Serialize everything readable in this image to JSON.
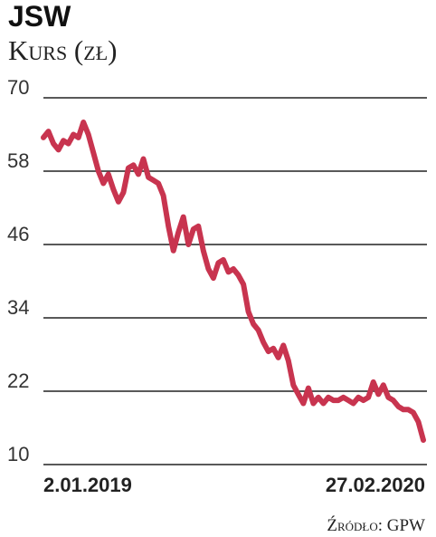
{
  "chart_data": {
    "type": "line",
    "title": "JSW",
    "subtitle": "Kurs (zł)",
    "ylim": [
      10,
      70
    ],
    "yticks": [
      10,
      22,
      34,
      46,
      58,
      70
    ],
    "ytick_labels": [
      "10",
      "22",
      "34",
      "46",
      "58",
      "70"
    ],
    "x_labels": [
      "2.01.2019",
      "27.02.2020"
    ],
    "grid": true,
    "line_color": "#c8344f",
    "grid_color": "#222222",
    "source": "Źródło: GPW",
    "series": [
      {
        "values": [
          63.5,
          64.5,
          62.5,
          61.5,
          63,
          62.5,
          64,
          63.5,
          66,
          64,
          61,
          58,
          56,
          57.5,
          55,
          53,
          54.5,
          58.5,
          59,
          57.5,
          60,
          57,
          56.5,
          56,
          54,
          49,
          45,
          48,
          50.5,
          46,
          48.5,
          49,
          45,
          42,
          40.5,
          43,
          43.5,
          41.5,
          42,
          41,
          39.5,
          35,
          33,
          32,
          30,
          28.5,
          29,
          27.5,
          29.5,
          27,
          23,
          21.5,
          20,
          22.5,
          20,
          21,
          20,
          21,
          20.5,
          20.5,
          21,
          20.5,
          20,
          21,
          20.5,
          21,
          23.5,
          21.5,
          23,
          21,
          20.5,
          19.5,
          19,
          19,
          18.5,
          17,
          14
        ]
      }
    ]
  }
}
